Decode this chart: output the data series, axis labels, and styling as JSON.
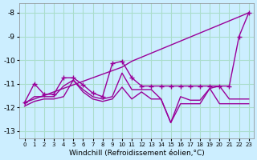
{
  "xlabel": "Windchill (Refroidissement éolien,°C)",
  "bg_color": "#cceeff",
  "grid_color": "#aaddcc",
  "line_color": "#990099",
  "xlim": [
    -0.5,
    23.5
  ],
  "ylim": [
    -13.3,
    -7.6
  ],
  "yticks": [
    -13,
    -12,
    -11,
    -10,
    -9,
    -8
  ],
  "xticks": [
    0,
    1,
    2,
    3,
    4,
    5,
    6,
    7,
    8,
    9,
    10,
    11,
    12,
    13,
    14,
    15,
    16,
    17,
    18,
    19,
    20,
    21,
    22,
    23
  ],
  "series": [
    {
      "x": [
        0,
        10,
        11,
        23
      ],
      "y": [
        -11.8,
        -10.3,
        -10.05,
        -8.0
      ],
      "marker": false
    },
    {
      "x": [
        0,
        1,
        2,
        3,
        4,
        5,
        6,
        7,
        8,
        9,
        10,
        11,
        12,
        13,
        14,
        15,
        16,
        17,
        18,
        19,
        20,
        21,
        22,
        23
      ],
      "y": [
        -11.8,
        -11.0,
        -11.45,
        -11.45,
        -10.75,
        -10.75,
        -11.05,
        -11.4,
        -11.55,
        -10.15,
        -10.05,
        -10.75,
        -11.1,
        -11.1,
        -11.1,
        -11.1,
        -11.1,
        -11.1,
        -11.1,
        -11.1,
        -11.1,
        -11.1,
        -9.0,
        -8.0
      ],
      "marker": true
    },
    {
      "x": [
        0,
        1,
        2,
        3,
        4,
        5,
        6,
        7,
        8,
        9,
        10,
        11,
        12,
        13,
        14,
        15,
        16,
        17,
        18,
        19,
        20,
        21,
        22,
        23
      ],
      "y": [
        -11.85,
        -11.55,
        -11.55,
        -11.55,
        -11.1,
        -10.85,
        -11.25,
        -11.55,
        -11.65,
        -11.55,
        -10.55,
        -11.25,
        -11.25,
        -11.25,
        -11.65,
        -12.65,
        -11.55,
        -11.7,
        -11.7,
        -11.2,
        -11.1,
        -11.65,
        -11.65,
        -11.65
      ],
      "marker": false
    },
    {
      "x": [
        0,
        1,
        2,
        3,
        4,
        5,
        6,
        7,
        8,
        9,
        10,
        11,
        12,
        13,
        14,
        15,
        16,
        17,
        18,
        19,
        20,
        21,
        22,
        23
      ],
      "y": [
        -11.95,
        -11.75,
        -11.65,
        -11.65,
        -11.55,
        -10.85,
        -11.35,
        -11.65,
        -11.75,
        -11.65,
        -11.15,
        -11.65,
        -11.35,
        -11.65,
        -11.65,
        -12.65,
        -11.85,
        -11.85,
        -11.85,
        -11.2,
        -11.85,
        -11.85,
        -11.85,
        -11.85
      ],
      "marker": false
    }
  ]
}
